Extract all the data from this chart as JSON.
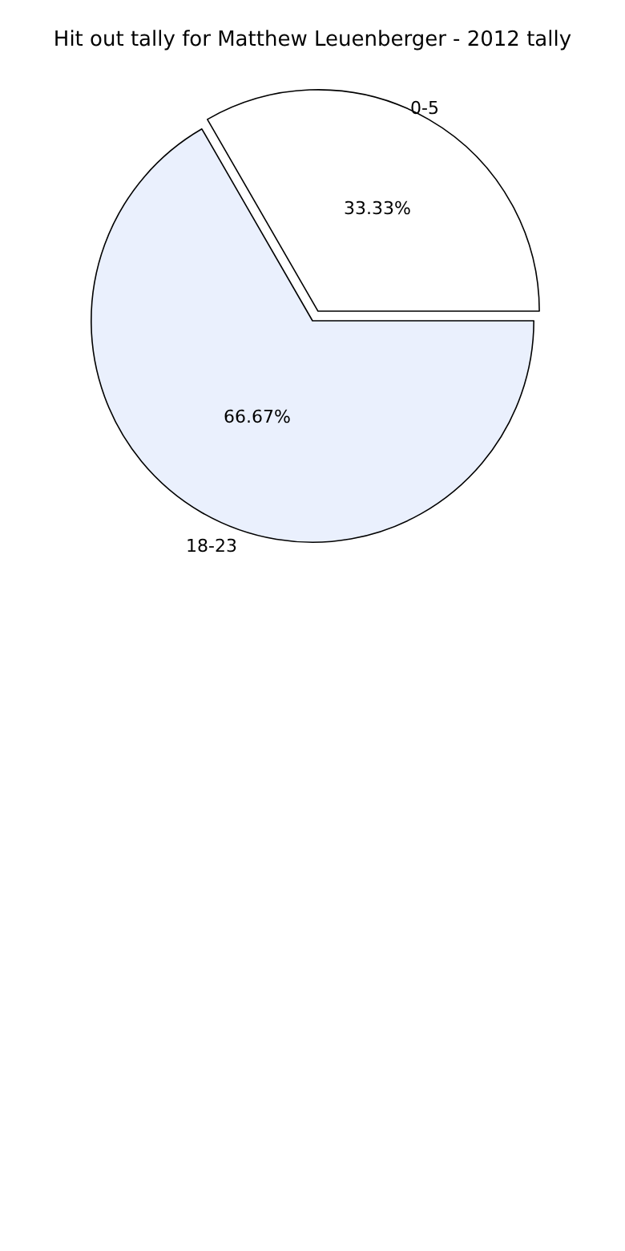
{
  "chart_data": {
    "type": "pie",
    "title": "Hit out tally for Matthew Leuenberger - 2012 tally",
    "categories": [
      "0-5",
      "18-23"
    ],
    "values": [
      33.33,
      66.67
    ],
    "colors": [
      "#ffffff",
      "#eaf0fd"
    ],
    "value_labels": [
      "33.33%",
      "66.67%"
    ],
    "legend": false
  }
}
